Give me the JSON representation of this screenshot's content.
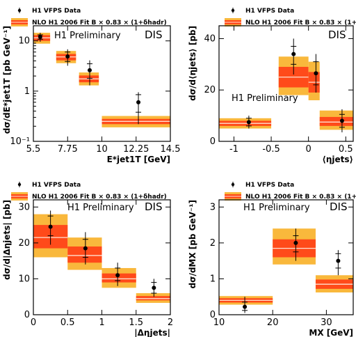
{
  "legend": {
    "data_label": "H1 VFPS Data",
    "nlo_label": "NLO H1 2006 Fit B × 0.83 × (1+δhadr)"
  },
  "colors": {
    "outer": "#F9B83C",
    "inner": "#FF4A1A",
    "line": "#FFE0D0",
    "point": "#000000"
  },
  "chart_data": [
    {
      "type": "bar",
      "id": "et",
      "annotation": "H1 Preliminary",
      "tag": "DIS",
      "xlabel": "E*jet1T [GeV]",
      "ylabel": "dσ/dE*jet1T [pb GeV⁻¹]",
      "log_y": true,
      "xlim": [
        5.5,
        14.5
      ],
      "ylim": [
        0.1,
        20
      ],
      "x_ticks": [
        "5.5",
        "7.75",
        "10",
        "12.25",
        "14.5"
      ],
      "y_ticks": [
        "10⁻¹",
        "1",
        "10"
      ],
      "bins": [
        {
          "lo": 5.5,
          "hi": 6.6,
          "nlo": 11.5,
          "in_lo": 10.0,
          "in_hi": 13.0,
          "out_lo": 8.8,
          "out_hi": 14.5
        },
        {
          "lo": 7.0,
          "hi": 8.3,
          "nlo": 4.8,
          "in_lo": 4.1,
          "in_hi": 5.5,
          "out_lo": 3.6,
          "out_hi": 6.3
        },
        {
          "lo": 8.5,
          "hi": 9.8,
          "nlo": 1.75,
          "in_lo": 1.5,
          "in_hi": 2.05,
          "out_lo": 1.3,
          "out_hi": 2.35
        },
        {
          "lo": 10.0,
          "hi": 14.5,
          "nlo": 0.25,
          "in_lo": 0.22,
          "in_hi": 0.28,
          "out_lo": 0.19,
          "out_hi": 0.32
        }
      ],
      "points": [
        {
          "x": 5.95,
          "y": 12.0,
          "stat_lo": 10.8,
          "stat_hi": 13.2,
          "tot_lo": 9.6,
          "tot_hi": 14.5
        },
        {
          "x": 7.75,
          "y": 4.9,
          "stat_lo": 3.9,
          "stat_hi": 6.0,
          "tot_lo": 3.2,
          "tot_hi": 6.8
        },
        {
          "x": 9.2,
          "y": 2.6,
          "stat_lo": 1.8,
          "stat_hi": 3.5,
          "tot_lo": 1.3,
          "tot_hi": 4.1
        },
        {
          "x": 12.4,
          "y": 0.6,
          "stat_lo": 0.38,
          "stat_hi": 0.85,
          "tot_lo": 0.22,
          "tot_hi": 0.95
        }
      ]
    },
    {
      "type": "bar",
      "id": "eta",
      "annotation": "H1 Preliminary",
      "tag": "DIS",
      "xlabel": "⟨ηjets⟩",
      "ylabel": "dσ/d⟨ηjets⟩ [pb]",
      "log_y": false,
      "xlim": [
        -1.2,
        0.6
      ],
      "ylim": [
        0,
        45
      ],
      "x_ticks": [
        "-1",
        "-0.5",
        "0",
        "0.5"
      ],
      "y_ticks": [
        "0",
        "20",
        "40"
      ],
      "bins": [
        {
          "lo": -1.2,
          "hi": -0.5,
          "nlo": 7.0,
          "in_lo": 6.0,
          "in_hi": 8.0,
          "out_lo": 5.0,
          "out_hi": 9.0
        },
        {
          "lo": -0.4,
          "hi": 0.0,
          "nlo": 25.0,
          "in_lo": 21.0,
          "in_hi": 29.0,
          "out_lo": 18.0,
          "out_hi": 33.0
        },
        {
          "lo": 0.0,
          "hi": 0.15,
          "nlo": 23.0,
          "in_lo": 19.0,
          "in_hi": 27.0,
          "out_lo": 16.0,
          "out_hi": 31.0
        },
        {
          "lo": 0.15,
          "hi": 0.6,
          "nlo": 7.5,
          "in_lo": 6.0,
          "in_hi": 9.5,
          "out_lo": 4.5,
          "out_hi": 12.0
        }
      ],
      "points": [
        {
          "x": -0.8,
          "y": 7.5,
          "stat_lo": 6.0,
          "stat_hi": 9.0,
          "tot_lo": 5.0,
          "tot_hi": 10.0
        },
        {
          "x": -0.2,
          "y": 34.0,
          "stat_lo": 30.0,
          "stat_hi": 37.0,
          "tot_lo": 26.0,
          "tot_hi": 40.0
        },
        {
          "x": 0.1,
          "y": 26.5,
          "stat_lo": 22.0,
          "stat_hi": 31.0,
          "tot_lo": 19.0,
          "tot_hi": 34.0
        },
        {
          "x": 0.45,
          "y": 8.0,
          "stat_lo": 5.5,
          "stat_hi": 10.5,
          "tot_lo": 3.5,
          "tot_hi": 12.5
        }
      ]
    },
    {
      "type": "bar",
      "id": "deta",
      "annotation": "H1 Preliminary",
      "tag": "DIS",
      "xlabel": "|Δηjets|",
      "ylabel": "dσ/d|Δηjets| [pb]",
      "log_y": false,
      "xlim": [
        0,
        2
      ],
      "ylim": [
        0,
        32
      ],
      "x_ticks": [
        "0",
        "0.5",
        "1",
        "1.5",
        "2"
      ],
      "y_ticks": [
        "0",
        "10",
        "20",
        "30"
      ],
      "bins": [
        {
          "lo": 0.0,
          "hi": 0.5,
          "nlo": 21.5,
          "in_lo": 18.5,
          "in_hi": 25.0,
          "out_lo": 16.0,
          "out_hi": 28.0
        },
        {
          "lo": 0.5,
          "hi": 1.0,
          "nlo": 16.5,
          "in_lo": 14.5,
          "in_hi": 19.0,
          "out_lo": 12.5,
          "out_hi": 21.5
        },
        {
          "lo": 1.0,
          "hi": 1.5,
          "nlo": 10.0,
          "in_lo": 9.0,
          "in_hi": 11.5,
          "out_lo": 7.5,
          "out_hi": 13.0
        },
        {
          "lo": 1.5,
          "hi": 2.0,
          "nlo": 4.5,
          "in_lo": 4.0,
          "in_hi": 5.2,
          "out_lo": 3.3,
          "out_hi": 6.0
        }
      ],
      "points": [
        {
          "x": 0.25,
          "y": 24.5,
          "stat_lo": 22.0,
          "stat_hi": 27.5,
          "tot_lo": 19.5,
          "tot_hi": 29.0
        },
        {
          "x": 0.76,
          "y": 18.5,
          "stat_lo": 16.0,
          "stat_hi": 21.0,
          "tot_lo": 14.0,
          "tot_hi": 23.0
        },
        {
          "x": 1.23,
          "y": 11.0,
          "stat_lo": 9.5,
          "stat_hi": 13.0,
          "tot_lo": 8.0,
          "tot_hi": 14.5
        },
        {
          "x": 1.76,
          "y": 7.5,
          "stat_lo": 6.0,
          "stat_hi": 9.0,
          "tot_lo": 5.0,
          "tot_hi": 10.0
        }
      ]
    },
    {
      "type": "bar",
      "id": "mx",
      "annotation": "H1 Preliminary",
      "tag": "DIS",
      "xlabel": "MX [GeV]",
      "ylabel": "dσ/dMX [pb GeV⁻¹]",
      "log_y": false,
      "xlim": [
        10,
        35
      ],
      "ylim": [
        0,
        3.2
      ],
      "x_ticks": [
        "10",
        "20",
        "30"
      ],
      "y_ticks": [
        "0",
        "1",
        "2",
        "3"
      ],
      "bins": [
        {
          "lo": 10,
          "hi": 20,
          "nlo": 0.4,
          "in_lo": 0.34,
          "in_hi": 0.46,
          "out_lo": 0.28,
          "out_hi": 0.52
        },
        {
          "lo": 20,
          "hi": 28,
          "nlo": 1.85,
          "in_lo": 1.6,
          "in_hi": 2.1,
          "out_lo": 1.4,
          "out_hi": 2.4
        },
        {
          "lo": 28,
          "hi": 35,
          "nlo": 0.85,
          "in_lo": 0.72,
          "in_hi": 0.98,
          "out_lo": 0.62,
          "out_hi": 1.1
        }
      ],
      "points": [
        {
          "x": 14.8,
          "y": 0.22,
          "stat_lo": 0.12,
          "stat_hi": 0.35,
          "tot_lo": 0.05,
          "tot_hi": 0.5
        },
        {
          "x": 24.3,
          "y": 2.0,
          "stat_lo": 1.75,
          "stat_hi": 2.2,
          "tot_lo": 1.5,
          "tot_hi": 2.4
        },
        {
          "x": 32.2,
          "y": 1.5,
          "stat_lo": 1.3,
          "stat_hi": 1.7,
          "tot_lo": 1.1,
          "tot_hi": 1.8
        }
      ]
    }
  ]
}
